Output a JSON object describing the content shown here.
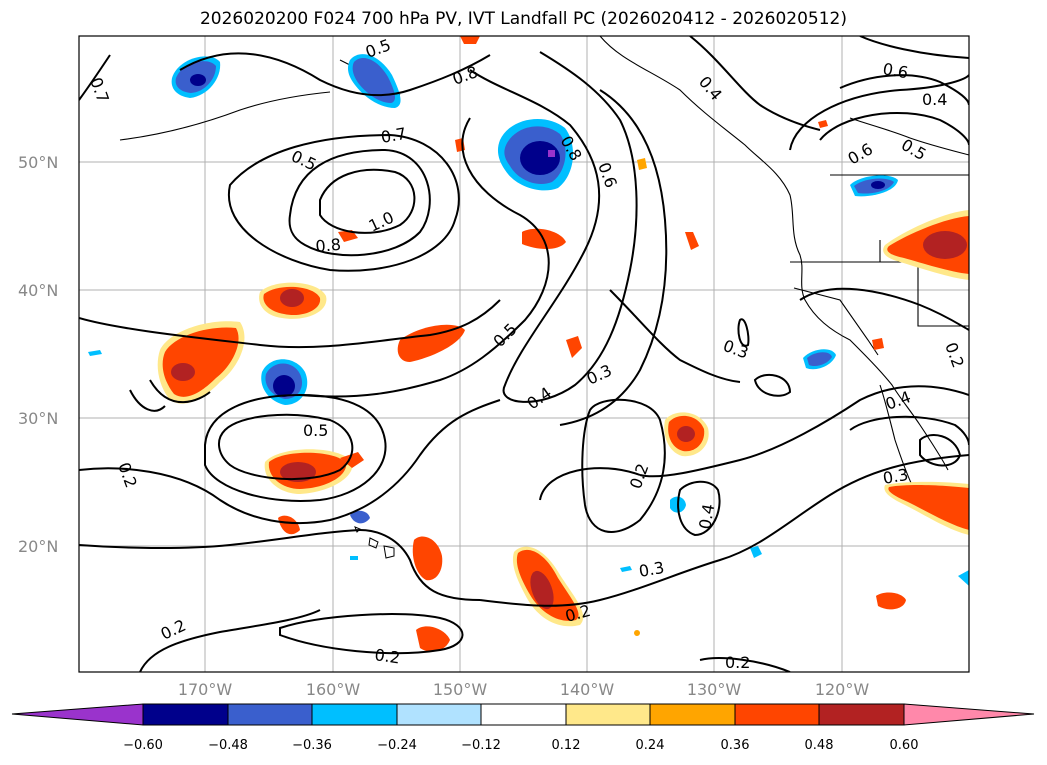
{
  "title": "2026020200 F024 700 hPa PV, IVT Landfall PC (2026020412 - 2026020512)",
  "lat_labels": [
    "50°N",
    "40°N",
    "30°N",
    "20°N"
  ],
  "lon_labels": [
    "170°W",
    "160°W",
    "150°W",
    "140°W",
    "130°W",
    "120°W"
  ],
  "contour_labels": [
    "0.7",
    "0.5",
    "0.8",
    "0.4",
    "0.6",
    "0.4",
    "0.5",
    "0.6",
    "0.5",
    "0.7",
    "0.8",
    "0.6",
    "1.0",
    "0.8",
    "0.5",
    "0.3",
    "0.4",
    "0.3",
    "0.2",
    "0.5",
    "0.2",
    "0.4",
    "0.2",
    "0.3",
    "0.4",
    "0.3",
    "0.2",
    "0.2",
    "0.2",
    "0.2"
  ],
  "colorbar": {
    "ticks": [
      "−0.60",
      "−0.48",
      "−0.36",
      "−0.24",
      "−0.12",
      "0.12",
      "0.24",
      "0.36",
      "0.48",
      "0.60"
    ],
    "colors": [
      "#9a33cc",
      "#00008b",
      "#3a5fcd",
      "#00bfff",
      "#b0e2ff",
      "#ffffff",
      "#ffe88a",
      "#ffa500",
      "#ff4500",
      "#b22222",
      "#ff88aa"
    ]
  }
}
